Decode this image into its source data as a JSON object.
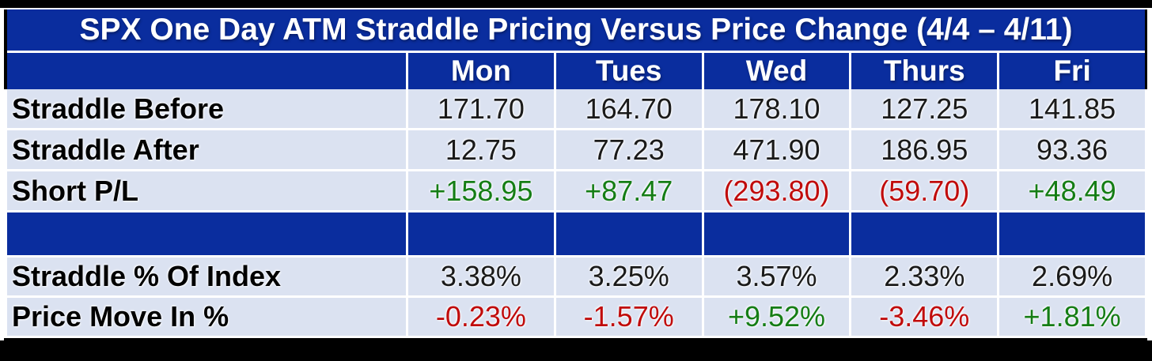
{
  "table": {
    "title": "SPX One Day ATM Straddle Pricing Versus Price Change (4/4 – 4/11)",
    "columns": [
      "Mon",
      "Tues",
      "Wed",
      "Thurs",
      "Fri"
    ],
    "rows": [
      {
        "label": "Straddle Before",
        "values": [
          {
            "text": "171.70",
            "cls": ""
          },
          {
            "text": "164.70",
            "cls": ""
          },
          {
            "text": "178.10",
            "cls": ""
          },
          {
            "text": "127.25",
            "cls": ""
          },
          {
            "text": "141.85",
            "cls": ""
          }
        ]
      },
      {
        "label": "Straddle After",
        "values": [
          {
            "text": "12.75",
            "cls": ""
          },
          {
            "text": "77.23",
            "cls": ""
          },
          {
            "text": "471.90",
            "cls": ""
          },
          {
            "text": "186.95",
            "cls": ""
          },
          {
            "text": "93.36",
            "cls": ""
          }
        ]
      },
      {
        "label": "Short P/L",
        "values": [
          {
            "text": "+158.95",
            "cls": "pos"
          },
          {
            "text": "+87.47",
            "cls": "pos"
          },
          {
            "text": "(293.80)",
            "cls": "neg"
          },
          {
            "text": "(59.70)",
            "cls": "neg"
          },
          {
            "text": "+48.49",
            "cls": "pos"
          }
        ]
      },
      {
        "label": "Straddle % Of Index",
        "values": [
          {
            "text": "3.38%",
            "cls": ""
          },
          {
            "text": "3.25%",
            "cls": ""
          },
          {
            "text": "3.57%",
            "cls": ""
          },
          {
            "text": "2.33%",
            "cls": ""
          },
          {
            "text": "2.69%",
            "cls": ""
          }
        ]
      },
      {
        "label": "Price Move In %",
        "values": [
          {
            "text": "-0.23%",
            "cls": "neg"
          },
          {
            "text": "-1.57%",
            "cls": "neg"
          },
          {
            "text": "+9.52%",
            "cls": "pos"
          },
          {
            "text": "-3.46%",
            "cls": "neg"
          },
          {
            "text": "+1.81%",
            "cls": "pos"
          }
        ]
      }
    ],
    "colors": {
      "header_blue": "#0a2d9e",
      "row_light_blue": "#dbe2f1",
      "positive_green": "#157d15",
      "negative_red": "#c00b0b",
      "frame_black": "#000000"
    }
  },
  "chart_data": {
    "type": "table",
    "title": "SPX One Day ATM Straddle Pricing Versus Price Change (4/4 – 4/11)",
    "columns": [
      "Mon",
      "Tues",
      "Wed",
      "Thurs",
      "Fri"
    ],
    "rows": [
      {
        "label": "Straddle Before",
        "values": [
          171.7,
          164.7,
          178.1,
          127.25,
          141.85
        ]
      },
      {
        "label": "Straddle After",
        "values": [
          12.75,
          77.23,
          471.9,
          186.95,
          93.36
        ]
      },
      {
        "label": "Short P/L",
        "values": [
          158.95,
          87.47,
          -293.8,
          -59.7,
          48.49
        ]
      },
      {
        "label": "Straddle % Of Index",
        "values": [
          3.38,
          3.25,
          3.57,
          2.33,
          2.69
        ],
        "unit": "%"
      },
      {
        "label": "Price Move In %",
        "values": [
          -0.23,
          -1.57,
          9.52,
          -3.46,
          1.81
        ],
        "unit": "%"
      }
    ]
  }
}
